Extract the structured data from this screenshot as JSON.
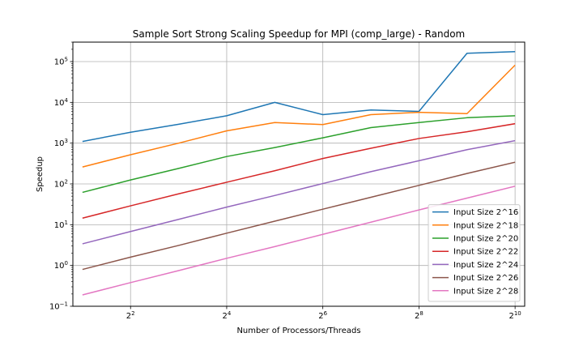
{
  "chart_data": {
    "type": "line",
    "title": "Sample Sort Strong Scaling Speedup for MPI (comp_large) - Random",
    "xlabel": "Number of Processors/Threads",
    "ylabel": "Speedup",
    "x_scale": "log2",
    "y_scale": "log10",
    "x": [
      2,
      4,
      8,
      16,
      32,
      64,
      128,
      256,
      512,
      1024
    ],
    "xlim_exponent": [
      0.8,
      10.2
    ],
    "ylim": [
      0.1,
      300000
    ],
    "x_ticks": [
      {
        "base": "2",
        "exp": "2",
        "value": 4
      },
      {
        "base": "2",
        "exp": "4",
        "value": 16
      },
      {
        "base": "2",
        "exp": "6",
        "value": 64
      },
      {
        "base": "2",
        "exp": "8",
        "value": 256
      },
      {
        "base": "2",
        "exp": "10",
        "value": 1024
      }
    ],
    "y_ticks": [
      {
        "base": "10",
        "exp": "−1",
        "value": 0.1
      },
      {
        "base": "10",
        "exp": "0",
        "value": 1
      },
      {
        "base": "10",
        "exp": "1",
        "value": 10
      },
      {
        "base": "10",
        "exp": "2",
        "value": 100
      },
      {
        "base": "10",
        "exp": "3",
        "value": 1000
      },
      {
        "base": "10",
        "exp": "4",
        "value": 10000
      },
      {
        "base": "10",
        "exp": "5",
        "value": 100000
      }
    ],
    "grid": true,
    "legend_position": "lower-right",
    "series": [
      {
        "name": "Input Size 2^16",
        "color": "#1f77b4",
        "values": [
          1100,
          1850,
          2900,
          4700,
          10000,
          5000,
          6500,
          6000,
          160000,
          175000
        ]
      },
      {
        "name": "Input Size 2^18",
        "color": "#ff7f0e",
        "values": [
          260,
          520,
          1000,
          2000,
          3200,
          2850,
          5000,
          5700,
          5300,
          82000
        ]
      },
      {
        "name": "Input Size 2^20",
        "color": "#2ca02c",
        "values": [
          62,
          125,
          240,
          470,
          780,
          1350,
          2400,
          3200,
          4200,
          4700
        ]
      },
      {
        "name": "Input Size 2^22",
        "color": "#d62728",
        "values": [
          14.5,
          29,
          57,
          110,
          210,
          420,
          750,
          1300,
          1900,
          3000
        ]
      },
      {
        "name": "Input Size 2^24",
        "color": "#9467bd",
        "values": [
          3.4,
          6.8,
          13.5,
          27,
          52,
          102,
          200,
          370,
          690,
          1150
        ]
      },
      {
        "name": "Input Size 2^26",
        "color": "#8c564b",
        "values": [
          0.8,
          1.6,
          3.1,
          6.2,
          12.2,
          24,
          47,
          92,
          180,
          340
        ]
      },
      {
        "name": "Input Size 2^28",
        "color": "#e377c2",
        "values": [
          0.19,
          0.38,
          0.75,
          1.5,
          2.9,
          5.8,
          11.5,
          23,
          45,
          88
        ]
      }
    ]
  }
}
